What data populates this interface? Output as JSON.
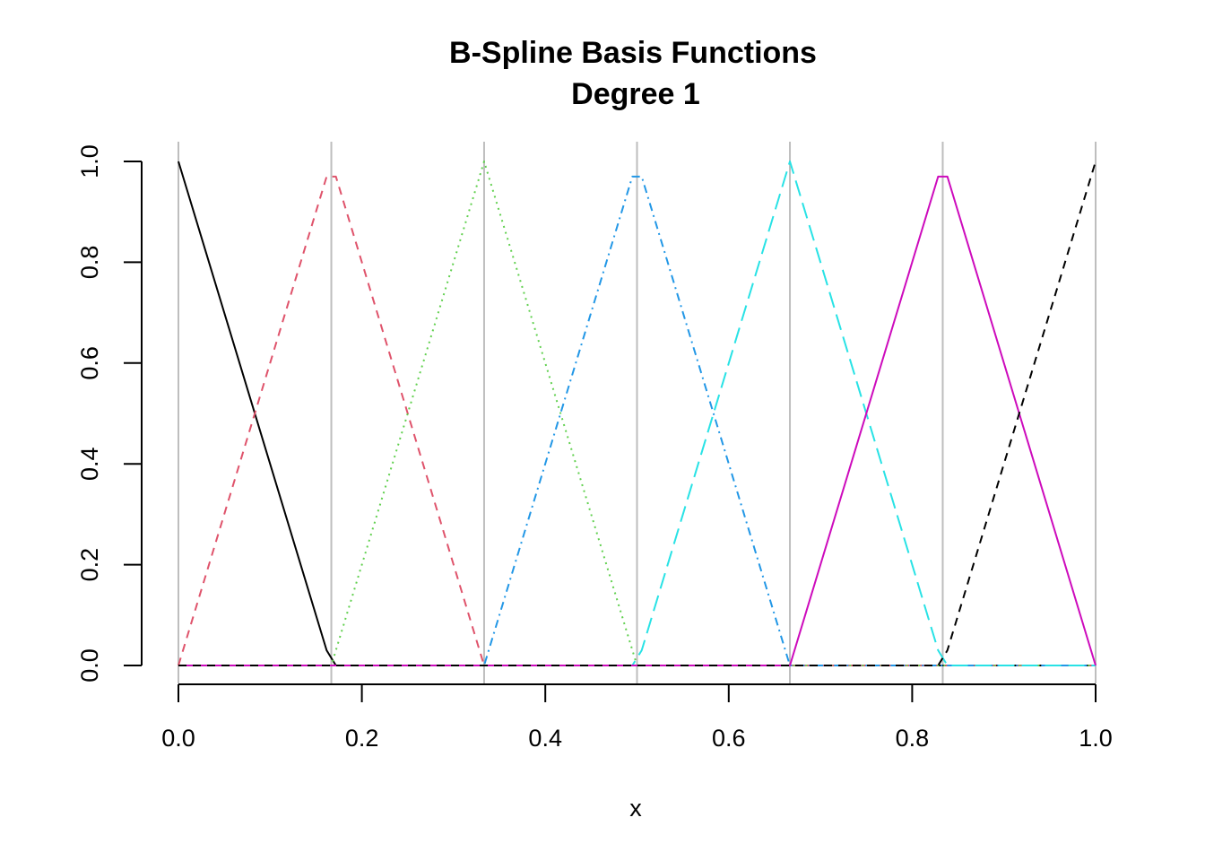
{
  "chart_data": {
    "type": "line",
    "title_lines": [
      "B-Spline Basis Functions",
      "Degree 1"
    ],
    "xlabel": "x",
    "ylabel": "",
    "xlim": [
      0,
      1
    ],
    "ylim": [
      0,
      1
    ],
    "x_ticks": [
      0.0,
      0.2,
      0.4,
      0.6,
      0.8,
      1.0
    ],
    "x_tick_labels": [
      "0.0",
      "0.2",
      "0.4",
      "0.6",
      "0.8",
      "1.0"
    ],
    "y_ticks": [
      0.0,
      0.2,
      0.4,
      0.6,
      0.8,
      1.0
    ],
    "y_tick_labels": [
      "0.0",
      "0.2",
      "0.4",
      "0.6",
      "0.8",
      "1.0"
    ],
    "knots": [
      0.0,
      0.1667,
      0.3333,
      0.5,
      0.6667,
      0.8333,
      1.0
    ],
    "knot_line_color": "#BEBEBE",
    "series": [
      {
        "color": "#000000",
        "dash": "solid",
        "x": [
          0.0,
          0.1616,
          0.1717,
          1.0
        ],
        "y": [
          1.0,
          0.03,
          0.0,
          0.0
        ]
      },
      {
        "color": "#DF536B",
        "dash": "dashed",
        "x": [
          0.0,
          0.1616,
          0.1717,
          0.3333,
          1.0
        ],
        "y": [
          0.0,
          0.97,
          0.97,
          0.0,
          0.0
        ]
      },
      {
        "color": "#61D04F",
        "dash": "dotted",
        "x": [
          0.0,
          0.1667,
          0.3333,
          0.5,
          1.0
        ],
        "y": [
          0.0,
          0.0,
          1.0,
          0.0,
          0.0
        ]
      },
      {
        "color": "#2297E6",
        "dash": "dotdash",
        "x": [
          0.0,
          0.3333,
          0.4949,
          0.5051,
          0.6667,
          1.0
        ],
        "y": [
          0.0,
          0.0,
          0.97,
          0.97,
          0.0,
          0.0
        ]
      },
      {
        "color": "#28E2E5",
        "dash": "longdash",
        "x": [
          0.0,
          0.4949,
          0.5051,
          0.6667,
          0.8283,
          0.8384,
          1.0
        ],
        "y": [
          0.0,
          0.0,
          0.03,
          1.0,
          0.03,
          0.0,
          0.0
        ]
      },
      {
        "color": "#CD0BBC",
        "dash": "solid",
        "x": [
          0.0,
          0.6667,
          0.8283,
          0.8384,
          1.0
        ],
        "y": [
          0.0,
          0.0,
          0.97,
          0.97,
          0.0
        ]
      },
      {
        "color": "#000000",
        "dash": "dashed",
        "x": [
          0.0,
          0.8283,
          0.8384,
          1.0
        ],
        "y": [
          0.0,
          0.0,
          0.03,
          1.0
        ]
      }
    ]
  }
}
